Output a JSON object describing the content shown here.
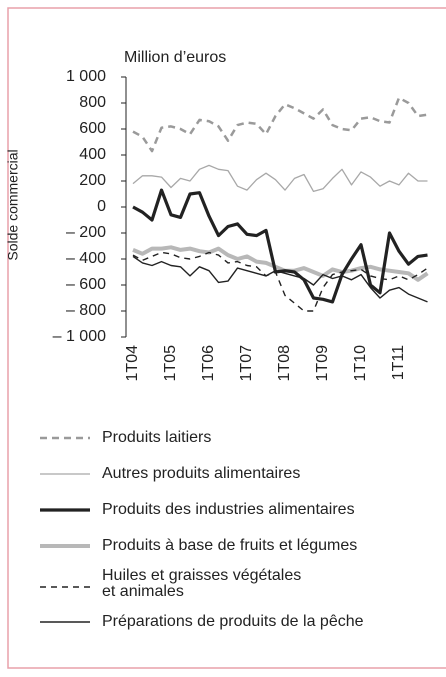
{
  "chart_data": {
    "type": "line",
    "y_unit_label": "Million d’euros",
    "y_axis_label": "Solde commercial",
    "categories": [
      "1T04",
      null,
      null,
      null,
      "1T05",
      null,
      null,
      null,
      "1T06",
      null,
      null,
      null,
      "1T07",
      null,
      null,
      null,
      "1T08",
      null,
      null,
      null,
      "1T09",
      null,
      null,
      null,
      "1T10",
      null,
      null,
      null,
      "1T11",
      null,
      null,
      null
    ],
    "ylim": [
      -1000,
      1000
    ],
    "yticks": [
      {
        "value": 1000,
        "label": "1 000"
      },
      800,
      600,
      400,
      200,
      0,
      {
        "value": -200,
        "label": "– 200"
      },
      {
        "value": -400,
        "label": "– 400"
      },
      {
        "value": -600,
        "label": "– 600"
      },
      {
        "value": -800,
        "label": "– 800"
      },
      {
        "value": -1000,
        "label": "– 1 000"
      }
    ],
    "series": [
      {
        "name": "Produits laitiers",
        "color": "#9a9a9a",
        "dash": "7,5",
        "width": 2.5,
        "values": [
          580,
          540,
          430,
          610,
          620,
          600,
          560,
          670,
          660,
          620,
          510,
          630,
          650,
          640,
          560,
          700,
          790,
          760,
          720,
          680,
          750,
          630,
          600,
          590,
          680,
          690,
          660,
          650,
          840,
          800,
          700,
          710
        ]
      },
      {
        "name": "Autres produits alimentaires",
        "color": "#a8a8a8",
        "dash": "none",
        "width": 1.3,
        "values": [
          180,
          240,
          240,
          230,
          150,
          220,
          200,
          290,
          320,
          290,
          280,
          160,
          130,
          210,
          260,
          210,
          130,
          220,
          250,
          120,
          140,
          220,
          290,
          170,
          270,
          230,
          160,
          200,
          170,
          260,
          200,
          200
        ]
      },
      {
        "name": "Produits des industries alimentaires",
        "color": "#222222",
        "dash": "none",
        "width": 3.2,
        "values": [
          0,
          -40,
          -100,
          130,
          -60,
          -80,
          100,
          110,
          -70,
          -220,
          -150,
          -130,
          -210,
          -220,
          -180,
          -500,
          -490,
          -500,
          -560,
          -700,
          -710,
          -730,
          -520,
          -400,
          -290,
          -600,
          -660,
          -200,
          -340,
          -440,
          -380,
          -370
        ]
      },
      {
        "name": "Produits à base de fruits et légumes",
        "color": "#b8b8b8",
        "dash": "none",
        "width": 4,
        "values": [
          -330,
          -360,
          -320,
          -320,
          -310,
          -330,
          -320,
          -340,
          -350,
          -320,
          -370,
          -400,
          -380,
          -420,
          -430,
          -460,
          -490,
          -490,
          -470,
          -500,
          -530,
          -480,
          -500,
          -490,
          -470,
          -460,
          -480,
          -490,
          -500,
          -510,
          -560,
          -510
        ]
      },
      {
        "name": "Huiles et graisses végétales\net animales",
        "color": "#222222",
        "dash": "6,5",
        "width": 1.4,
        "values": [
          -370,
          -410,
          -380,
          -350,
          -360,
          -390,
          -400,
          -380,
          -350,
          -370,
          -430,
          -420,
          -450,
          -460,
          -530,
          -500,
          -680,
          -740,
          -800,
          -800,
          -620,
          -520,
          -500,
          -490,
          -480,
          -530,
          -550,
          -560,
          -530,
          -560,
          -520,
          -470
        ]
      },
      {
        "name": "Préparations de produits de la pêche",
        "color": "#222222",
        "dash": "none",
        "width": 1.4,
        "values": [
          -380,
          -430,
          -450,
          -420,
          -450,
          -460,
          -530,
          -460,
          -490,
          -580,
          -570,
          -470,
          -490,
          -510,
          -530,
          -490,
          -510,
          -530,
          -550,
          -600,
          -520,
          -550,
          -530,
          -560,
          -520,
          -620,
          -700,
          -640,
          -620,
          -670,
          -700,
          -730
        ]
      }
    ]
  }
}
